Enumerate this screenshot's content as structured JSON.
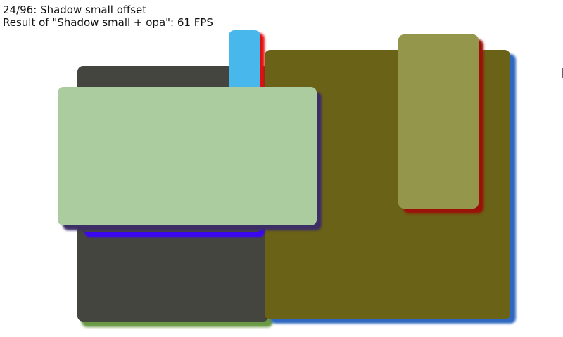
{
  "header": {
    "scene": "24/96: Shadow small offset",
    "result": "Result of \"Shadow small + opa\": 61 FPS"
  },
  "colors": {
    "dark_gray": "#45453f",
    "green_shadow": "#6a9a45",
    "sky_blue": "#48b8ec",
    "red_shadow": "#e01010",
    "olive": "#6a6216",
    "blue_shadow": "#2f68c0",
    "light_olive": "#94964c",
    "dark_red_shadow": "#9c1008",
    "violet_shadow": "#3a08f0",
    "light_green": "#abcc9e",
    "purple_shadow": "#3d2e66"
  }
}
